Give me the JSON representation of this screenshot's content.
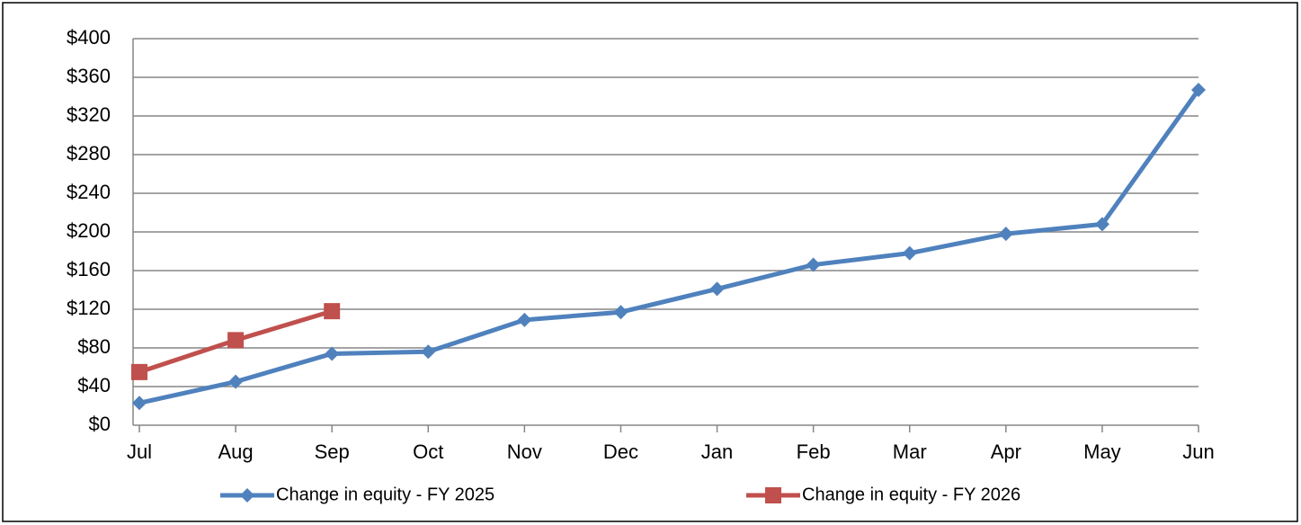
{
  "chart_data": {
    "type": "line",
    "categories": [
      "Jul",
      "Aug",
      "Sep",
      "Oct",
      "Nov",
      "Dec",
      "Jan",
      "Feb",
      "Mar",
      "Apr",
      "May",
      "Jun"
    ],
    "series": [
      {
        "name": "Change in equity - FY 2025",
        "color": "#4f81bd",
        "marker": "diamond",
        "values": [
          23,
          45,
          74,
          76,
          109,
          117,
          141,
          166,
          178,
          198,
          208,
          347
        ]
      },
      {
        "name": "Change in equity - FY 2026",
        "color": "#c0504d",
        "marker": "square",
        "values": [
          55,
          88,
          118,
          null,
          null,
          null,
          null,
          null,
          null,
          null,
          null,
          null
        ]
      }
    ],
    "ylim": [
      0,
      400
    ],
    "yticks": [
      {
        "value": 0,
        "label": "$0"
      },
      {
        "value": 40,
        "label": "$40"
      },
      {
        "value": 80,
        "label": "$80"
      },
      {
        "value": 120,
        "label": "$120"
      },
      {
        "value": 160,
        "label": "$160"
      },
      {
        "value": 200,
        "label": "$200"
      },
      {
        "value": 240,
        "label": "$240"
      },
      {
        "value": 280,
        "label": "$280"
      },
      {
        "value": 320,
        "label": "$320"
      },
      {
        "value": 360,
        "label": "$360"
      },
      {
        "value": 400,
        "label": "$400"
      }
    ],
    "grid": true,
    "legend": "bottom"
  }
}
